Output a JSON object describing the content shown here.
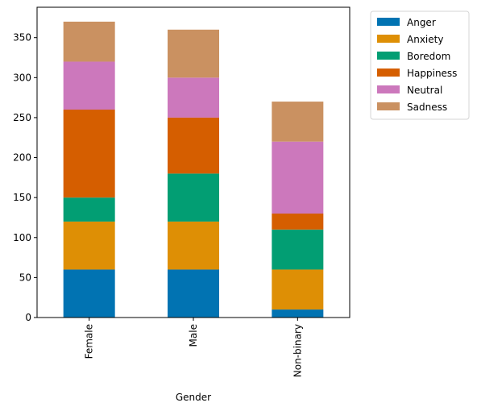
{
  "chart_data": {
    "type": "bar",
    "stacked": true,
    "categories": [
      "Female",
      "Male",
      "Non-binary"
    ],
    "series": [
      {
        "name": "Anger",
        "values": [
          60,
          60,
          10
        ],
        "color": "#0173b2"
      },
      {
        "name": "Anxiety",
        "values": [
          60,
          60,
          50
        ],
        "color": "#de8f05"
      },
      {
        "name": "Boredom",
        "values": [
          30,
          60,
          50
        ],
        "color": "#029e73"
      },
      {
        "name": "Happiness",
        "values": [
          110,
          70,
          20
        ],
        "color": "#d55e00"
      },
      {
        "name": "Neutral",
        "values": [
          60,
          50,
          90
        ],
        "color": "#cc78bc"
      },
      {
        "name": "Sadness",
        "values": [
          50,
          60,
          50
        ],
        "color": "#ca9161"
      }
    ],
    "title": "",
    "xlabel": "Gender",
    "ylabel": "",
    "ylim": [
      0,
      388
    ],
    "yticks": [
      0,
      50,
      100,
      150,
      200,
      250,
      300,
      350
    ],
    "grid": false,
    "legend_position": "outside-top-right"
  }
}
